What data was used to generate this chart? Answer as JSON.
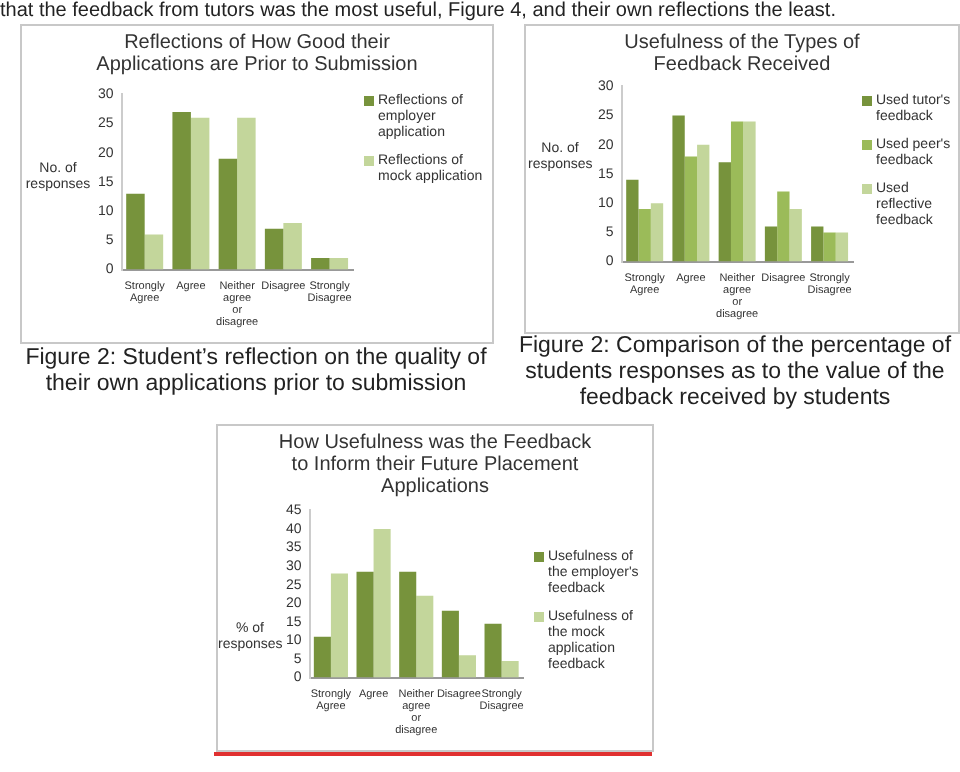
{
  "chart_data": [
    {
      "type": "bar",
      "title": "Reflections of How Good their Applications are Prior to Submission",
      "ylabel": "No. of responses",
      "categories": [
        "Strongly Agree",
        "Agree",
        "Neither agree or disagree",
        "Disagree",
        "Strongly Disagree"
      ],
      "series": [
        {
          "name": "Reflections of employer application",
          "color": "#77933c",
          "values": [
            13,
            27,
            19,
            7,
            2
          ]
        },
        {
          "name": "Reflections of mock application",
          "color": "#c3d69b",
          "values": [
            6,
            26,
            26,
            8,
            2
          ]
        }
      ],
      "ylim": [
        0,
        30
      ],
      "yticks": [
        0,
        5,
        10,
        15,
        20,
        25,
        30
      ],
      "grid": false,
      "legend": "right",
      "annotations": [
        "that the feedback from tutors was the most useful, Figure 4, and their own reflections the least.",
        "Figure 2: Student’s reflection on the quality of their own applications prior to submission"
      ]
    },
    {
      "type": "bar",
      "title": "Usefulness of the Types of Feedback Received",
      "ylabel": "No. of responses",
      "categories": [
        "Strongly Agree",
        "Agree",
        "Neither agree or disagree",
        "Disagree",
        "Strongly Disagree"
      ],
      "series": [
        {
          "name": "Used tutor's feedback",
          "color": "#77933c",
          "values": [
            14,
            25,
            17,
            6,
            6
          ]
        },
        {
          "name": "Used peer's feedback",
          "color": "#9bbb59",
          "values": [
            9,
            18,
            24,
            12,
            5
          ]
        },
        {
          "name": "Used reflective feedback",
          "color": "#c3d69b",
          "values": [
            10,
            20,
            24,
            9,
            5
          ]
        }
      ],
      "ylim": [
        0,
        30
      ],
      "yticks": [
        0,
        5,
        10,
        15,
        20,
        25,
        30
      ],
      "grid": false,
      "legend": "right",
      "annotations": [
        "Figure 2: Comparison of the percentage of students responses as to the value of the feedback received by students"
      ]
    },
    {
      "type": "bar",
      "title": "How Usefulness was the Feedback to Inform their Future Placement Applications",
      "ylabel": "% of responses",
      "categories": [
        "Strongly Agree",
        "Agree",
        "Neither agree or disagree",
        "Disagree",
        "Strongly Disagree"
      ],
      "series": [
        {
          "name": "Usefulness of the employer's feedback",
          "color": "#77933c",
          "values": [
            11,
            28.5,
            28.5,
            18,
            14.5
          ]
        },
        {
          "name": "Usefulness of the mock application feedback",
          "color": "#c3d69b",
          "values": [
            28,
            40,
            22,
            6,
            4.5
          ]
        }
      ],
      "ylim": [
        0,
        45
      ],
      "yticks": [
        0,
        5,
        10,
        15,
        20,
        25,
        30,
        35,
        40,
        45
      ],
      "grid": false,
      "legend": "right"
    }
  ]
}
